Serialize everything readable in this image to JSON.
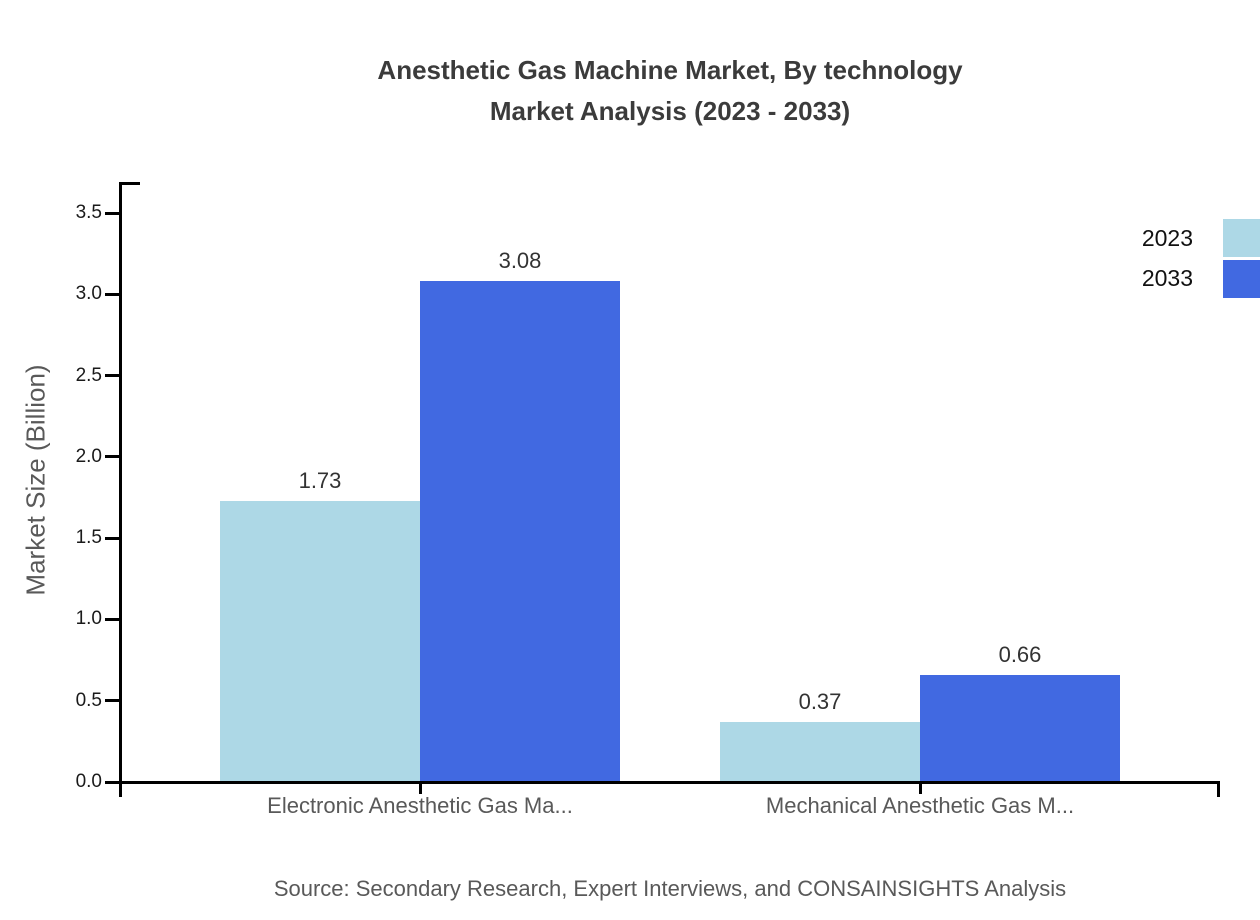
{
  "title": {
    "line1": "Anesthetic Gas Machine Market, By technology",
    "line2": "Market Analysis (2023 - 2033)"
  },
  "source": "Source: Secondary Research, Expert Interviews, and CONSAINSIGHTS Analysis",
  "chart_data": {
    "type": "bar",
    "title": "Anesthetic Gas Machine Market, By technology Market Analysis (2023 - 2033)",
    "categories": [
      "Electronic Anesthetic Gas Ma...",
      "Mechanical Anesthetic Gas M..."
    ],
    "series": [
      {
        "name": "2023",
        "color": "#ADD8E6",
        "values": [
          1.73,
          0.37
        ]
      },
      {
        "name": "2033",
        "color": "#4169E1",
        "values": [
          3.08,
          0.66
        ]
      }
    ],
    "xlabel": "",
    "ylabel": "Market Size (Billion)",
    "ylim": [
      0,
      3.5
    ],
    "yticks": [
      0.0,
      0.5,
      1.0,
      1.5,
      2.0,
      2.5,
      3.0,
      3.5
    ],
    "grid": false,
    "legend_position": "top-right",
    "value_labels": true,
    "axis_color": "#000000",
    "text_colors": {
      "title": "#3b3b3b",
      "axis_text": "#595959",
      "tick_labels": "#1a1a1a",
      "value_labels": "#333333"
    }
  }
}
